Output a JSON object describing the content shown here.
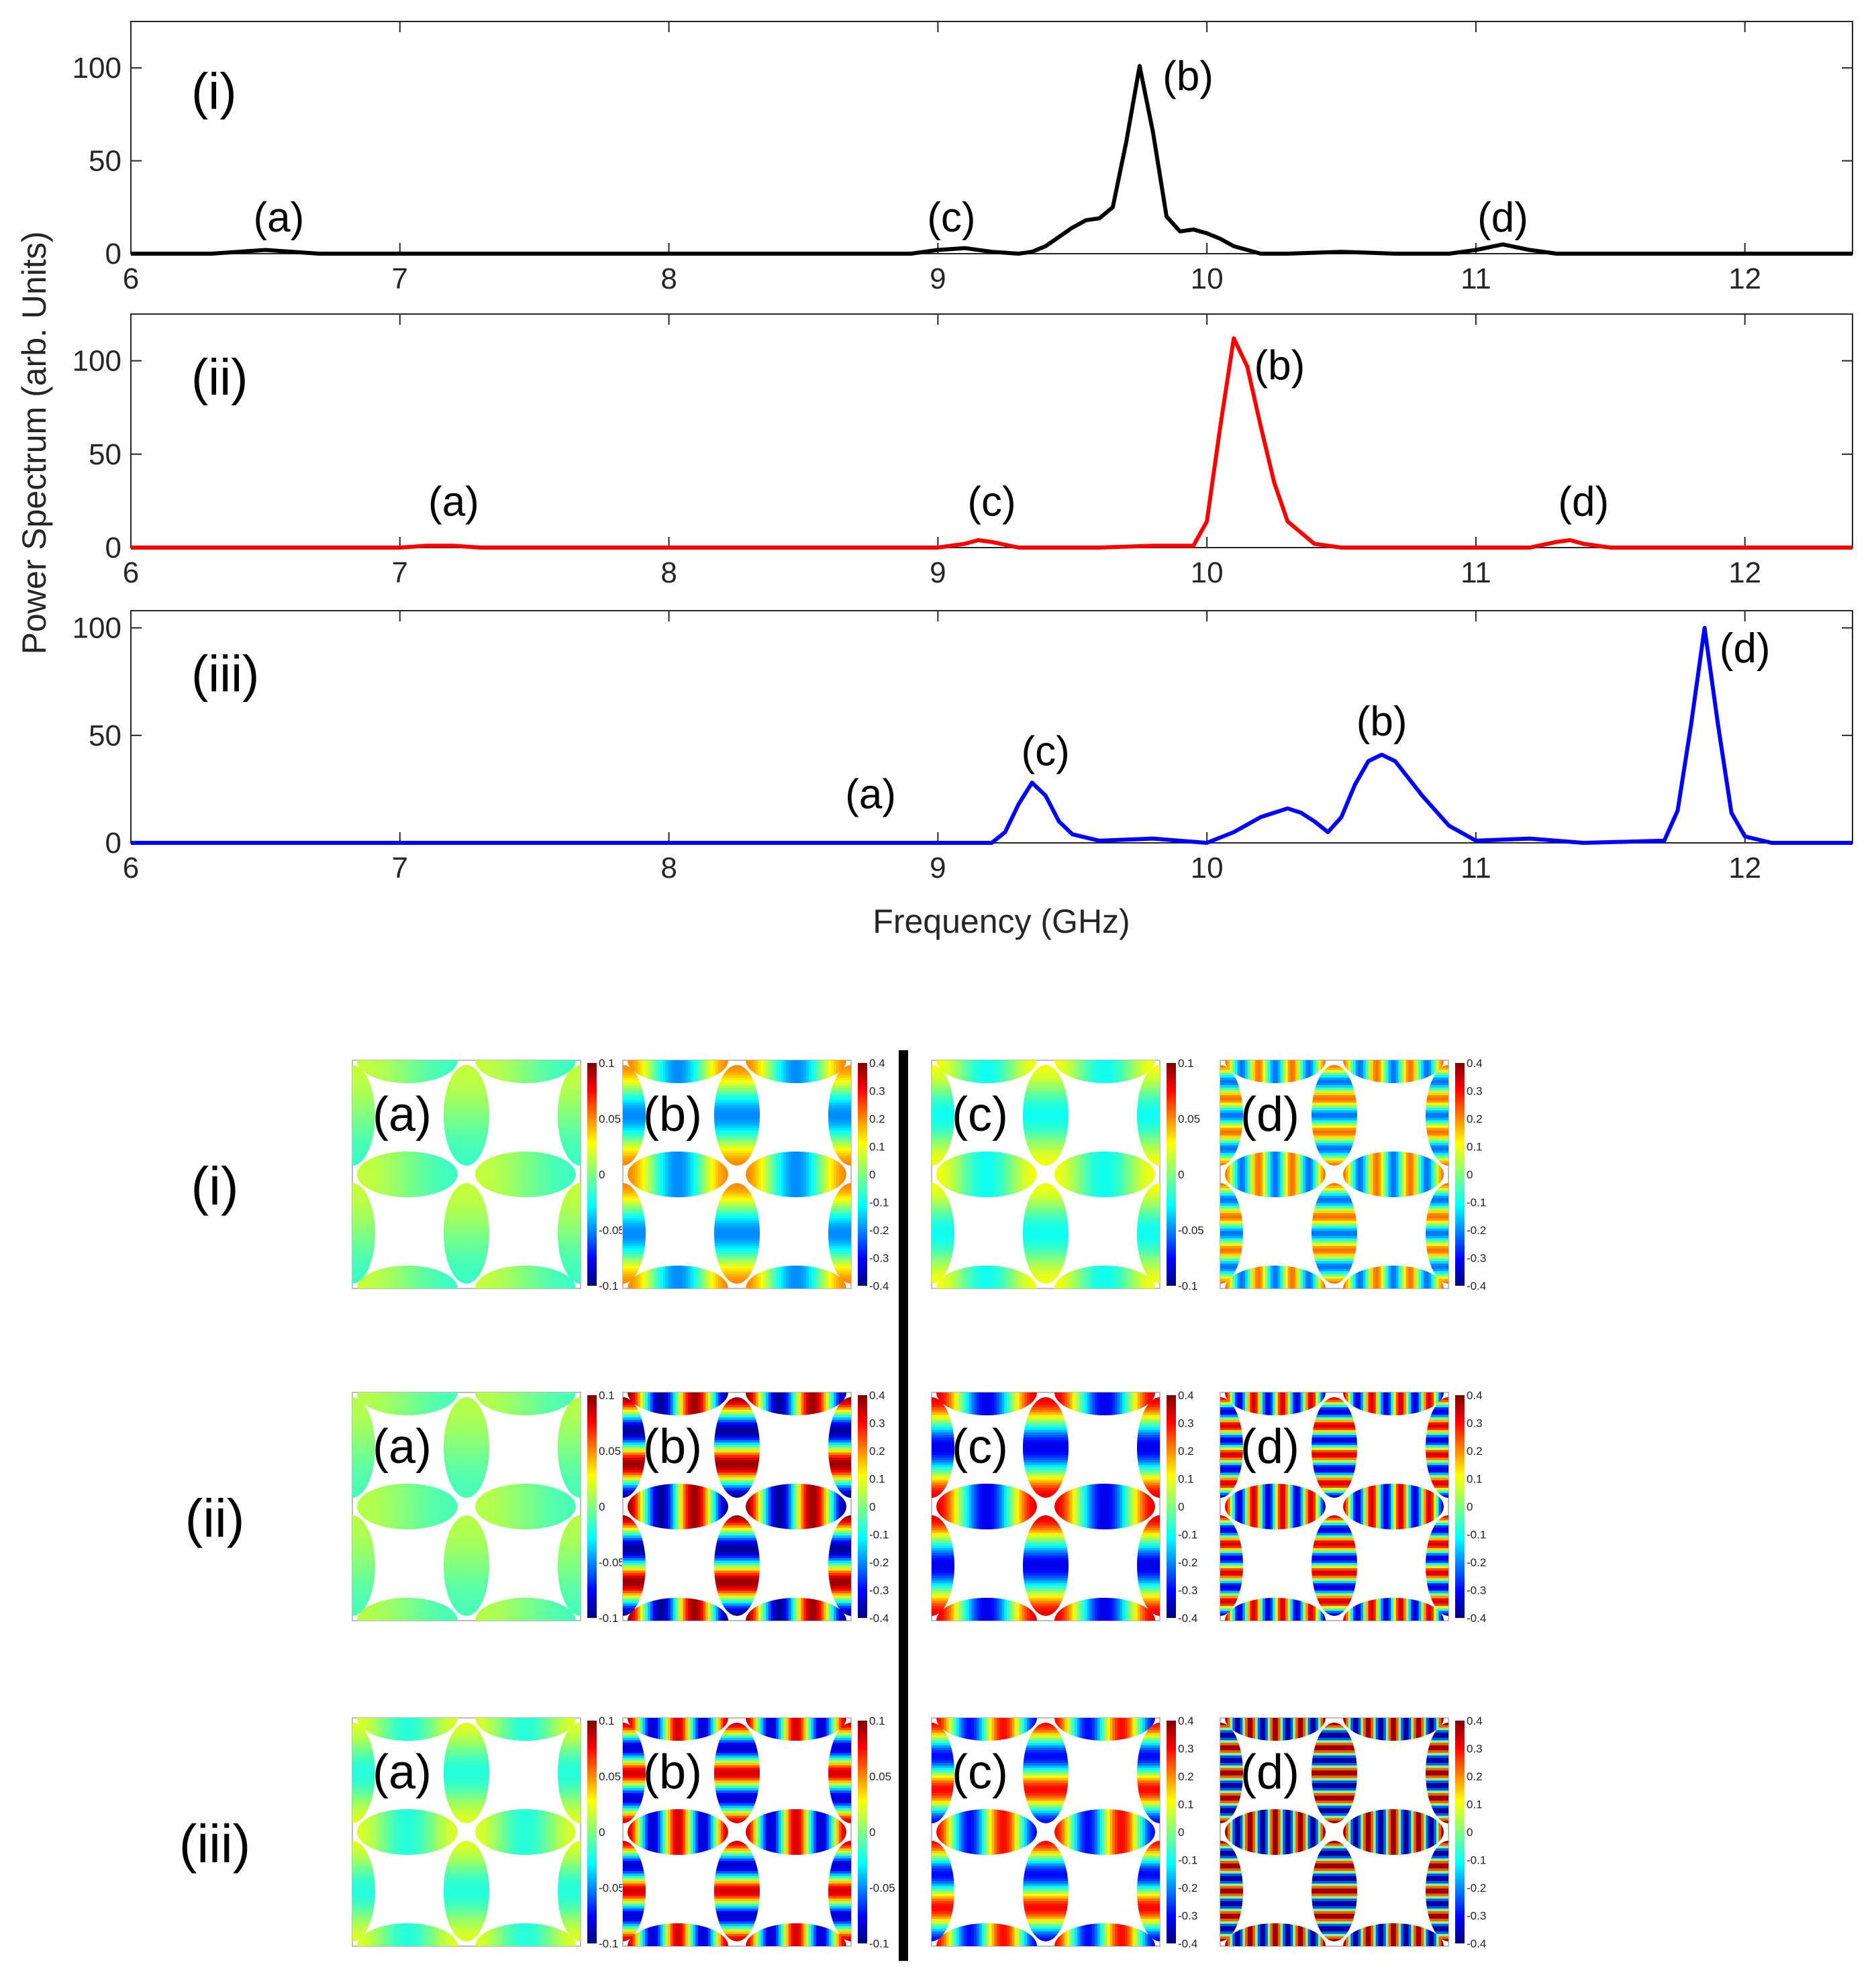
{
  "chart_data": {
    "type": "line",
    "ylabel": "Power Spectrum (arb. Units)",
    "xlabel": "Frequency (GHz)",
    "xlim": [
      6,
      12.4
    ],
    "xticks": [
      "6",
      "7",
      "8",
      "9",
      "10",
      "11",
      "12"
    ],
    "panels": [
      {
        "label": "(i)",
        "color": "#000000",
        "ylim": [
          0,
          125
        ],
        "yticks": [
          "0",
          "50",
          "100"
        ],
        "x": [
          6.0,
          6.3,
          6.4,
          6.5,
          6.6,
          6.7,
          8.9,
          9.0,
          9.1,
          9.2,
          9.3,
          9.35,
          9.4,
          9.45,
          9.5,
          9.55,
          9.6,
          9.65,
          9.7,
          9.75,
          9.8,
          9.85,
          9.9,
          9.95,
          10.0,
          10.05,
          10.1,
          10.2,
          10.3,
          10.5,
          10.7,
          10.9,
          11.0,
          11.1,
          11.2,
          11.3,
          12.4
        ],
        "y": [
          0,
          0,
          1,
          2,
          1,
          0,
          0,
          2,
          3,
          1,
          0,
          1,
          4,
          9,
          14,
          18,
          19,
          25,
          60,
          101,
          65,
          20,
          12,
          13,
          11,
          8,
          4,
          0,
          0,
          1,
          0,
          0,
          2,
          5,
          2,
          0,
          0
        ],
        "annotations": [
          {
            "text": "(a)",
            "x": 6.55,
            "y": 12
          },
          {
            "text": "(c)",
            "x": 9.05,
            "y": 12
          },
          {
            "text": "(b)",
            "x": 9.93,
            "y": 88
          },
          {
            "text": "(d)",
            "x": 11.1,
            "y": 12
          }
        ]
      },
      {
        "label": "(ii)",
        "color": "#ff0000",
        "ylim": [
          0,
          125
        ],
        "yticks": [
          "0",
          "50",
          "100"
        ],
        "x": [
          6.0,
          7.0,
          7.1,
          7.2,
          7.3,
          7.4,
          9.0,
          9.1,
          9.15,
          9.2,
          9.3,
          9.4,
          9.6,
          9.8,
          9.95,
          10.0,
          10.05,
          10.1,
          10.15,
          10.2,
          10.25,
          10.3,
          10.4,
          10.5,
          11.2,
          11.3,
          11.35,
          11.4,
          11.5,
          12.4
        ],
        "y": [
          0,
          0,
          1,
          1,
          0,
          0,
          0,
          2,
          4,
          3,
          0,
          0,
          0,
          1,
          1,
          14,
          65,
          112,
          97,
          65,
          35,
          14,
          2,
          0,
          0,
          3,
          4,
          2,
          0,
          0
        ],
        "annotations": [
          {
            "text": "(a)",
            "x": 7.2,
            "y": 17
          },
          {
            "text": "(c)",
            "x": 9.2,
            "y": 17
          },
          {
            "text": "(b)",
            "x": 10.27,
            "y": 90
          },
          {
            "text": "(d)",
            "x": 11.4,
            "y": 17
          }
        ]
      },
      {
        "label": "(iii)",
        "color": "#0000ff",
        "ylim": [
          0,
          108
        ],
        "yticks": [
          "0",
          "50",
          "100"
        ],
        "x": [
          6.0,
          9.2,
          9.25,
          9.3,
          9.35,
          9.4,
          9.45,
          9.5,
          9.6,
          9.8,
          10.0,
          10.1,
          10.2,
          10.3,
          10.35,
          10.4,
          10.45,
          10.5,
          10.55,
          10.6,
          10.65,
          10.7,
          10.8,
          10.9,
          11.0,
          11.2,
          11.4,
          11.7,
          11.75,
          11.8,
          11.85,
          11.9,
          11.95,
          12.0,
          12.1,
          12.4
        ],
        "y": [
          0,
          0,
          5,
          18,
          28,
          22,
          10,
          4,
          1,
          2,
          0,
          5,
          12,
          16,
          14,
          10,
          5,
          12,
          27,
          38,
          41,
          38,
          22,
          8,
          1,
          2,
          0,
          1,
          15,
          55,
          100,
          55,
          14,
          3,
          0,
          0
        ],
        "annotations": [
          {
            "text": "(a)",
            "x": 8.75,
            "y": 16
          },
          {
            "text": "(c)",
            "x": 9.4,
            "y": 36
          },
          {
            "text": "(b)",
            "x": 10.65,
            "y": 50
          },
          {
            "text": "(d)",
            "x": 12.0,
            "y": 84
          }
        ]
      }
    ]
  },
  "mode_maps": {
    "rows": [
      "(i)",
      "(ii)",
      "(iii)"
    ],
    "cols": [
      "(a)",
      "(b)",
      "(c)",
      "(d)"
    ],
    "colorbars": [
      [
        {
          "ticks": [
            "0.1",
            "0.05",
            "0",
            "-0.05",
            "-0.1"
          ],
          "max": 0.1,
          "intensity": 0.15,
          "stripes": 1
        },
        {
          "ticks": [
            "0.4",
            "0.3",
            "0.2",
            "0.1",
            "0",
            "-0.1",
            "-0.2",
            "-0.3",
            "-0.4"
          ],
          "max": 0.4,
          "intensity": 0.5,
          "stripes": 2
        },
        {
          "ticks": [
            "0.1",
            "0.05",
            "0",
            "-0.05",
            "-0.1"
          ],
          "max": 0.1,
          "intensity": 0.25,
          "stripes": 2
        },
        {
          "ticks": [
            "0.4",
            "0.3",
            "0.2",
            "0.1",
            "0",
            "-0.1",
            "-0.2",
            "-0.3",
            "-0.4"
          ],
          "max": 0.4,
          "intensity": 0.55,
          "stripes": 6
        }
      ],
      [
        {
          "ticks": [
            "0.1",
            "0.05",
            "0",
            "-0.05",
            "-0.1"
          ],
          "max": 0.1,
          "intensity": 0.12,
          "stripes": 1
        },
        {
          "ticks": [
            "0.4",
            "0.3",
            "0.2",
            "0.1",
            "0",
            "-0.1",
            "-0.2",
            "-0.3",
            "-0.4"
          ],
          "max": 0.4,
          "intensity": 0.95,
          "stripes": 3
        },
        {
          "ticks": [
            "0.4",
            "0.3",
            "0.2",
            "0.1",
            "0",
            "-0.1",
            "-0.2",
            "-0.3",
            "-0.4"
          ],
          "max": 0.4,
          "intensity": 0.8,
          "stripes": 2
        },
        {
          "ticks": [
            "0.4",
            "0.3",
            "0.2",
            "0.1",
            "0",
            "-0.1",
            "-0.2",
            "-0.3",
            "-0.4"
          ],
          "max": 0.4,
          "intensity": 0.85,
          "stripes": 7
        }
      ],
      [
        {
          "ticks": [
            "0.1",
            "0.05",
            "0",
            "-0.05",
            "-0.1"
          ],
          "max": 0.1,
          "intensity": 0.2,
          "stripes": 2
        },
        {
          "ticks": [
            "0.1",
            "0.05",
            "0",
            "-0.05",
            "-0.1"
          ],
          "max": 0.1,
          "intensity": 0.85,
          "stripes": 4
        },
        {
          "ticks": [
            "0.4",
            "0.3",
            "0.2",
            "0.1",
            "0",
            "-0.1",
            "-0.2",
            "-0.3",
            "-0.4"
          ],
          "max": 0.4,
          "intensity": 0.75,
          "stripes": 3
        },
        {
          "ticks": [
            "0.4",
            "0.3",
            "0.2",
            "0.1",
            "0",
            "-0.1",
            "-0.2",
            "-0.3",
            "-0.4"
          ],
          "max": 0.4,
          "intensity": 1.0,
          "stripes": 8
        }
      ]
    ]
  }
}
